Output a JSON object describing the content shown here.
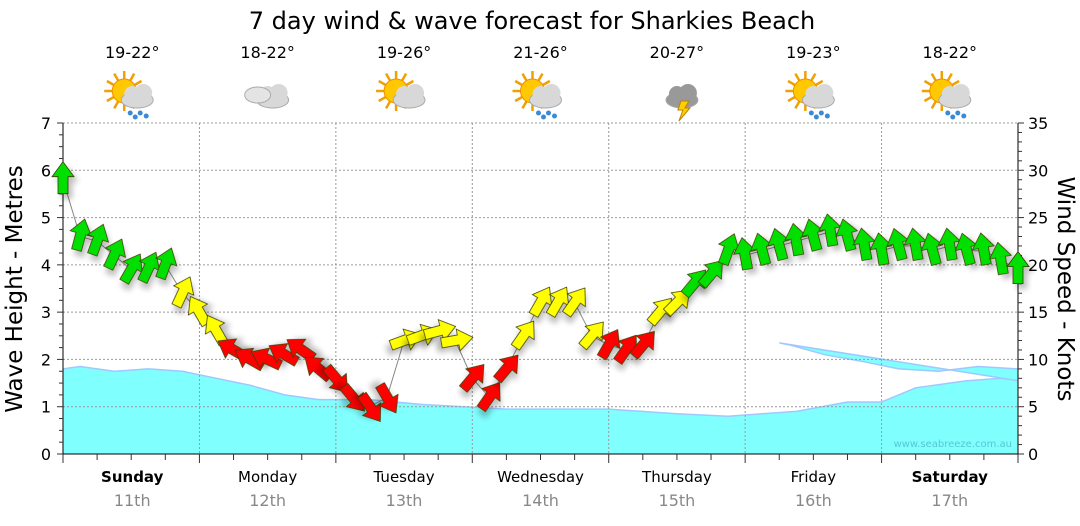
{
  "chart_data": {
    "type": "line",
    "title": "7 day wind & wave forecast for Sharkies Beach",
    "ylabel": "Wave Height - Metres",
    "y2label": "Wind Speed - Knots",
    "ylim": [
      0,
      7
    ],
    "y2lim": [
      0,
      35
    ],
    "yticks": [
      "0",
      "1",
      "2",
      "3",
      "4",
      "5",
      "6",
      "7"
    ],
    "y2ticks": [
      "0",
      "5",
      "10",
      "15",
      "20",
      "25",
      "30",
      "35"
    ],
    "grid": true,
    "watermark": "www.seabreeze.com.au",
    "colors": {
      "wave": "#80ffff",
      "wave_edge": "#a0c8ff",
      "strong": "#00e000",
      "moderate": "#ffff00",
      "light": "#ff0000"
    },
    "days": [
      {
        "name": "Sunday",
        "date": "11th",
        "bold": true,
        "temp": "19-22°",
        "icon": "sun-cloud-rain-icon"
      },
      {
        "name": "Monday",
        "date": "12th",
        "bold": false,
        "temp": "18-22°",
        "icon": "cloud-icon"
      },
      {
        "name": "Tuesday",
        "date": "13th",
        "bold": false,
        "temp": "19-26°",
        "icon": "sun-cloud-icon"
      },
      {
        "name": "Wednesday",
        "date": "14th",
        "bold": false,
        "temp": "21-26°",
        "icon": "sun-cloud-rain-icon"
      },
      {
        "name": "Thursday",
        "date": "15th",
        "bold": false,
        "temp": "20-27°",
        "icon": "storm-icon"
      },
      {
        "name": "Friday",
        "date": "16th",
        "bold": false,
        "temp": "19-23°",
        "icon": "sun-cloud-rain-icon"
      },
      {
        "name": "Saturday",
        "date": "17th",
        "bold": true,
        "temp": "18-22°",
        "icon": "sun-cloud-rain-icon"
      }
    ],
    "wave_height_m": {
      "hours": [
        0,
        3,
        9,
        15,
        21,
        27,
        33,
        39,
        45,
        54,
        63,
        78,
        96,
        108,
        117,
        123,
        129,
        138,
        144,
        150,
        159,
        165,
        168
      ],
      "values": [
        1.8,
        1.85,
        1.75,
        1.8,
        1.75,
        1.6,
        1.45,
        1.25,
        1.15,
        1.15,
        1.05,
        0.95,
        0.95,
        0.85,
        0.8,
        0.85,
        0.9,
        1.1,
        1.1,
        1.4,
        1.55,
        1.6,
        1.55
      ]
    },
    "wave_height_m_tail": {
      "hours": [
        126,
        128,
        134,
        141,
        147,
        154,
        161,
        168
      ],
      "values": [
        2.35,
        2.3,
        2.1,
        1.95,
        1.8,
        1.75,
        1.85,
        1.8
      ]
    },
    "wind": {
      "hours": [
        0,
        3,
        6,
        9,
        12,
        15,
        18,
        21,
        24,
        27,
        30,
        33,
        36,
        39,
        42,
        45,
        48,
        51,
        54,
        57,
        60,
        63,
        66,
        69,
        72,
        75,
        78,
        81,
        84,
        87,
        90,
        93,
        96,
        99,
        102,
        105,
        108,
        111,
        114,
        117,
        120,
        123,
        126,
        129,
        132,
        135,
        138,
        141,
        144,
        147,
        150,
        153,
        156,
        159,
        162,
        165,
        168
      ],
      "knots": [
        29,
        23,
        22.5,
        21,
        19.5,
        19.6,
        20,
        17,
        15,
        13,
        11,
        10,
        10,
        10.5,
        11,
        9,
        8,
        6,
        5,
        6,
        12,
        12.5,
        13,
        12,
        8,
        6,
        9,
        12.5,
        16,
        16,
        16,
        12.5,
        11.5,
        11,
        11.5,
        15,
        16,
        18,
        19,
        21.5,
        21,
        21.5,
        22,
        22.5,
        23,
        23.5,
        23,
        22,
        21.5,
        22,
        22,
        21.5,
        22,
        21.5,
        21.5,
        20.5,
        19.5
      ],
      "heading_deg": [
        0,
        15,
        20,
        25,
        30,
        25,
        20,
        25,
        330,
        330,
        300,
        300,
        295,
        300,
        305,
        310,
        140,
        140,
        145,
        150,
        70,
        70,
        75,
        80,
        40,
        35,
        40,
        35,
        30,
        30,
        35,
        40,
        30,
        35,
        40,
        40,
        45,
        40,
        40,
        20,
        350,
        345,
        345,
        350,
        345,
        350,
        345,
        350,
        350,
        345,
        350,
        345,
        350,
        345,
        350,
        350,
        0
      ]
    }
  }
}
